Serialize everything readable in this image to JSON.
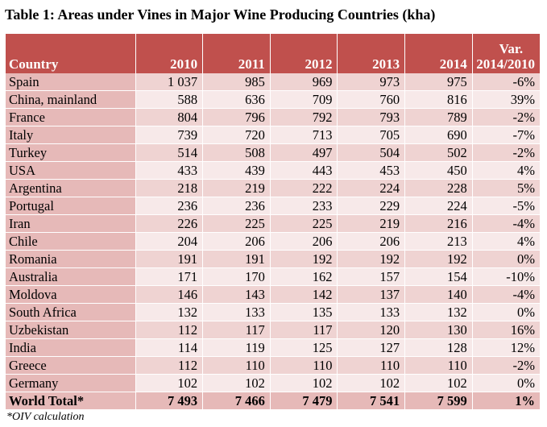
{
  "title": "Table 1: Areas under Vines in Major Wine Producing Countries (kha)",
  "table": {
    "headers": {
      "country": "Country",
      "y2010": "2010",
      "y2011": "2011",
      "y2012": "2012",
      "y2013": "2013",
      "y2014": "2014",
      "var_line1": "Var.",
      "var_line2": "2014/2010"
    },
    "rows": [
      {
        "country": "Spain",
        "y2010": "1 037",
        "y2011": "985",
        "y2012": "969",
        "y2013": "973",
        "y2014": "975",
        "var": "-6%"
      },
      {
        "country": "China, mainland",
        "y2010": "588",
        "y2011": "636",
        "y2012": "709",
        "y2013": "760",
        "y2014": "816",
        "var": "39%"
      },
      {
        "country": "France",
        "y2010": "804",
        "y2011": "796",
        "y2012": "792",
        "y2013": "793",
        "y2014": "789",
        "var": "-2%"
      },
      {
        "country": "Italy",
        "y2010": "739",
        "y2011": "720",
        "y2012": "713",
        "y2013": "705",
        "y2014": "690",
        "var": "-7%"
      },
      {
        "country": "Turkey",
        "y2010": "514",
        "y2011": "508",
        "y2012": "497",
        "y2013": "504",
        "y2014": "502",
        "var": "-2%"
      },
      {
        "country": "USA",
        "y2010": "433",
        "y2011": "439",
        "y2012": "443",
        "y2013": "453",
        "y2014": "450",
        "var": "4%"
      },
      {
        "country": "Argentina",
        "y2010": "218",
        "y2011": "219",
        "y2012": "222",
        "y2013": "224",
        "y2014": "228",
        "var": "5%"
      },
      {
        "country": "Portugal",
        "y2010": "236",
        "y2011": "236",
        "y2012": "233",
        "y2013": "229",
        "y2014": "224",
        "var": "-5%"
      },
      {
        "country": "Iran",
        "y2010": "226",
        "y2011": "225",
        "y2012": "225",
        "y2013": "219",
        "y2014": "216",
        "var": "-4%"
      },
      {
        "country": "Chile",
        "y2010": "204",
        "y2011": "206",
        "y2012": "206",
        "y2013": "206",
        "y2014": "213",
        "var": "4%"
      },
      {
        "country": "Romania",
        "y2010": "191",
        "y2011": "191",
        "y2012": "192",
        "y2013": "192",
        "y2014": "192",
        "var": "0%"
      },
      {
        "country": "Australia",
        "y2010": "171",
        "y2011": "170",
        "y2012": "162",
        "y2013": "157",
        "y2014": "154",
        "var": "-10%"
      },
      {
        "country": "Moldova",
        "y2010": "146",
        "y2011": "143",
        "y2012": "142",
        "y2013": "137",
        "y2014": "140",
        "var": "-4%"
      },
      {
        "country": "South Africa",
        "y2010": "132",
        "y2011": "133",
        "y2012": "135",
        "y2013": "133",
        "y2014": "132",
        "var": "0%"
      },
      {
        "country": "Uzbekistan",
        "y2010": "112",
        "y2011": "117",
        "y2012": "117",
        "y2013": "120",
        "y2014": "130",
        "var": "16%"
      },
      {
        "country": "India",
        "y2010": "114",
        "y2011": "119",
        "y2012": "125",
        "y2013": "127",
        "y2014": "128",
        "var": "12%"
      },
      {
        "country": "Greece",
        "y2010": "112",
        "y2011": "110",
        "y2012": "110",
        "y2013": "110",
        "y2014": "110",
        "var": "-2%"
      },
      {
        "country": "Germany",
        "y2010": "102",
        "y2011": "102",
        "y2012": "102",
        "y2013": "102",
        "y2014": "102",
        "var": "0%"
      }
    ],
    "total": {
      "country": "World Total*",
      "y2010": "7 493",
      "y2011": "7 466",
      "y2012": "7 479",
      "y2013": "7 541",
      "y2014": "7 599",
      "var": "1%"
    }
  },
  "footnote": "*OIV calculation",
  "colors": {
    "header_bg": "#c0504d",
    "country_col_bg": "#e6b9b8",
    "row_odd_bg": "#efd3d2",
    "row_even_bg": "#f7e9e9"
  }
}
